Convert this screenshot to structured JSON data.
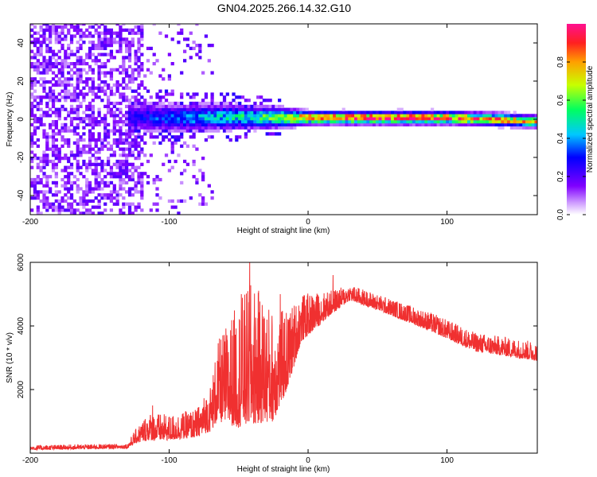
{
  "chart_data": [
    {
      "type": "heatmap",
      "title": "GN04.2025.266.14.32.G10",
      "xlabel": "Height of straight line (km)",
      "ylabel": "Frequency (Hz)",
      "xlim": [
        -200,
        165
      ],
      "ylim": [
        -50,
        50
      ],
      "xticks": [
        -200,
        -100,
        0,
        100
      ],
      "yticks": [
        -40,
        -20,
        0,
        20,
        40
      ],
      "colorbar": {
        "label": "Normalized spectral amplitude",
        "range": [
          0,
          1
        ],
        "ticks": [
          0.0,
          0.2,
          0.4,
          0.6,
          0.8
        ]
      },
      "ridge": {
        "description_x_start": -130,
        "center_freq_hz": [
          {
            "x": -130,
            "f": 0.5
          },
          {
            "x": -100,
            "f": 0.0
          },
          {
            "x": -60,
            "f": 0.5
          },
          {
            "x": -20,
            "f": 0.0
          },
          {
            "x": 0,
            "f": 0.0
          },
          {
            "x": 50,
            "f": 0.0
          },
          {
            "x": 100,
            "f": 0.0
          },
          {
            "x": 140,
            "f": -1.0
          },
          {
            "x": 165,
            "f": -2.0
          }
        ],
        "amplitude": [
          {
            "x": -130,
            "a": 0.25
          },
          {
            "x": -100,
            "a": 0.35
          },
          {
            "x": -60,
            "a": 0.45
          },
          {
            "x": -20,
            "a": 0.6
          },
          {
            "x": 0,
            "a": 0.9
          },
          {
            "x": 40,
            "a": 0.95
          },
          {
            "x": 100,
            "a": 0.9
          },
          {
            "x": 140,
            "a": 0.8
          },
          {
            "x": 165,
            "a": 0.7
          }
        ],
        "width_hz": [
          {
            "x": -130,
            "w": 6
          },
          {
            "x": -60,
            "w": 5
          },
          {
            "x": -20,
            "w": 4
          },
          {
            "x": 0,
            "w": 2.5
          },
          {
            "x": 165,
            "w": 2.5
          }
        ]
      },
      "noise_region": {
        "x_range": [
          -200,
          -70
        ],
        "dense_until": -120,
        "amplitude": 0.15
      }
    },
    {
      "type": "line",
      "xlabel": "Height of straight line (km)",
      "ylabel": "SNR (10 * v/v)",
      "xlim": [
        -200,
        165
      ],
      "ylim": [
        0,
        6000
      ],
      "xticks": [
        -200,
        -100,
        0,
        100
      ],
      "yticks": [
        2000,
        4000,
        6000
      ],
      "series": [
        {
          "name": "SNR",
          "color": "#f03030",
          "envelope": [
            {
              "x": -200,
              "base": 100,
              "amp": 150
            },
            {
              "x": -130,
              "base": 150,
              "amp": 150
            },
            {
              "x": -125,
              "base": 300,
              "amp": 400
            },
            {
              "x": -115,
              "base": 400,
              "amp": 900
            },
            {
              "x": -100,
              "base": 400,
              "amp": 800
            },
            {
              "x": -80,
              "base": 500,
              "amp": 900
            },
            {
              "x": -70,
              "base": 700,
              "amp": 1500
            },
            {
              "x": -65,
              "base": 1000,
              "amp": 2500
            },
            {
              "x": -50,
              "base": 800,
              "amp": 4000
            },
            {
              "x": -40,
              "base": 900,
              "amp": 4500
            },
            {
              "x": -25,
              "base": 1000,
              "amp": 3500
            },
            {
              "x": -15,
              "base": 2000,
              "amp": 2500
            },
            {
              "x": -5,
              "base": 3500,
              "amp": 1500
            },
            {
              "x": 15,
              "base": 4300,
              "amp": 800
            },
            {
              "x": 30,
              "base": 4800,
              "amp": 500
            },
            {
              "x": 50,
              "base": 4500,
              "amp": 500
            },
            {
              "x": 90,
              "base": 3800,
              "amp": 600
            },
            {
              "x": 120,
              "base": 3200,
              "amp": 600
            },
            {
              "x": 165,
              "base": 2900,
              "amp": 600
            }
          ],
          "peaks": [
            {
              "x": -42,
              "y": 6000
            },
            {
              "x": 18,
              "y": 5600
            },
            {
              "x": -48,
              "y": 5000
            },
            {
              "x": -20,
              "y": 5000
            },
            {
              "x": -112,
              "y": 1500
            }
          ]
        }
      ]
    }
  ]
}
